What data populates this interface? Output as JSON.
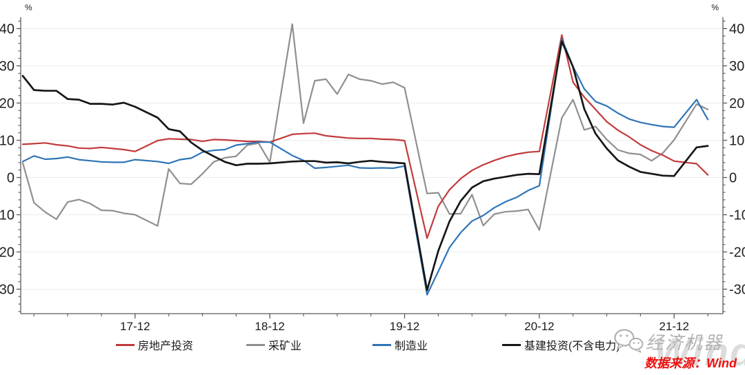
{
  "watermark": {
    "brand": "经济机器",
    "wind_text": "Wind"
  },
  "source_note": {
    "text": "数据来源：Wind"
  },
  "chart_data": {
    "type": "line",
    "y_unit": "%",
    "grid": true,
    "legend_position": "bottom",
    "ylim": [
      -36.5,
      43.0
    ],
    "yticks": [
      40,
      30,
      20,
      10,
      0,
      -10,
      -20,
      -30
    ],
    "y_minor_step": 2,
    "x_tick_labels": [
      "17-12",
      "18-12",
      "19-12",
      "20-12",
      "21-12"
    ],
    "x": [
      "17-02",
      "17-03",
      "17-04",
      "17-05",
      "17-06",
      "17-07",
      "17-08",
      "17-09",
      "17-10",
      "17-11",
      "17-12",
      "18-02",
      "18-03",
      "18-04",
      "18-05",
      "18-06",
      "18-07",
      "18-08",
      "18-09",
      "18-10",
      "18-11",
      "18-12",
      "19-02",
      "19-03",
      "19-04",
      "19-05",
      "19-06",
      "19-07",
      "19-08",
      "19-09",
      "19-10",
      "19-11",
      "19-12",
      "20-02",
      "20-03",
      "20-04",
      "20-05",
      "20-06",
      "20-07",
      "20-08",
      "20-09",
      "20-10",
      "20-11",
      "20-12",
      "21-02",
      "21-03",
      "21-04",
      "21-05",
      "21-06",
      "21-07",
      "21-08",
      "21-09",
      "21-10",
      "21-11",
      "21-12",
      "22-02",
      "22-03"
    ],
    "series": [
      {
        "name": "房地产投资",
        "color": "#c23a3a",
        "width": 2.2,
        "values": [
          8.9,
          9.1,
          9.3,
          8.8,
          8.5,
          7.9,
          7.8,
          8.1,
          7.8,
          7.5,
          7.0,
          9.9,
          10.4,
          10.3,
          10.2,
          9.7,
          10.2,
          10.1,
          9.9,
          9.7,
          9.7,
          9.5,
          11.6,
          11.8,
          11.9,
          11.2,
          10.9,
          10.6,
          10.5,
          10.5,
          10.3,
          10.2,
          9.9,
          -16.3,
          -7.7,
          -3.3,
          -0.3,
          1.9,
          3.4,
          4.6,
          5.6,
          6.3,
          6.8,
          7.0,
          38.3,
          25.6,
          21.6,
          18.3,
          15.0,
          12.7,
          10.9,
          8.8,
          7.2,
          6.0,
          4.4,
          3.7,
          0.7
        ]
      },
      {
        "name": "采矿业",
        "color": "#8f8f8f",
        "width": 2.2,
        "values": [
          3.9,
          -6.8,
          -9.3,
          -11.2,
          -6.6,
          -5.9,
          -7.0,
          -8.8,
          -8.9,
          -9.6,
          -10.0,
          -13.0,
          2.3,
          -1.6,
          -1.8,
          1.0,
          4.2,
          5.3,
          5.7,
          8.7,
          9.2,
          4.1,
          41.2,
          14.6,
          26.0,
          26.4,
          22.4,
          27.7,
          26.4,
          26.0,
          25.1,
          25.6,
          24.1,
          -4.3,
          -4.1,
          -9.8,
          -9.7,
          -4.6,
          -12.9,
          -9.8,
          -9.2,
          -9.0,
          -8.6,
          -14.1,
          16.0,
          20.9,
          12.8,
          13.7,
          10.2,
          7.4,
          6.5,
          6.2,
          4.5,
          6.6,
          10.1,
          19.7,
          18.3
        ]
      },
      {
        "name": "制造业",
        "color": "#2e74b6",
        "width": 2.2,
        "values": [
          4.3,
          5.8,
          4.9,
          5.1,
          5.5,
          4.8,
          4.5,
          4.2,
          4.1,
          4.1,
          4.8,
          4.3,
          3.8,
          4.8,
          5.2,
          6.8,
          7.3,
          7.5,
          8.7,
          9.1,
          9.5,
          9.5,
          5.9,
          4.6,
          2.5,
          2.7,
          3.0,
          3.3,
          2.6,
          2.5,
          2.6,
          2.5,
          3.1,
          -31.5,
          -25.2,
          -18.8,
          -14.8,
          -11.7,
          -10.2,
          -8.1,
          -6.5,
          -5.3,
          -3.5,
          -2.2,
          37.3,
          29.8,
          23.8,
          20.4,
          19.2,
          17.3,
          15.7,
          14.8,
          14.2,
          13.7,
          13.5,
          20.9,
          15.6
        ]
      },
      {
        "name": "基建投资(不含电力)",
        "color": "#161616",
        "width": 2.7,
        "values": [
          27.3,
          23.5,
          23.3,
          23.3,
          21.1,
          20.9,
          19.8,
          19.8,
          19.6,
          20.1,
          19.0,
          16.1,
          13.0,
          12.4,
          9.4,
          7.3,
          5.7,
          4.2,
          3.3,
          3.7,
          3.7,
          3.8,
          4.3,
          4.4,
          4.4,
          4.0,
          4.1,
          3.8,
          4.2,
          4.5,
          4.2,
          4.0,
          3.8,
          -30.3,
          -19.7,
          -11.8,
          -6.3,
          -2.7,
          -1.0,
          -0.3,
          0.2,
          0.7,
          1.0,
          0.9,
          36.6,
          29.7,
          18.4,
          11.8,
          7.8,
          4.6,
          2.9,
          1.5,
          1.0,
          0.5,
          0.4,
          8.1,
          8.5
        ]
      }
    ],
    "style": {
      "axis_color": "#595959",
      "grid_color": "#ececec",
      "tick_label_color": "#212121",
      "x_label_color": "#1a1a1a"
    }
  }
}
